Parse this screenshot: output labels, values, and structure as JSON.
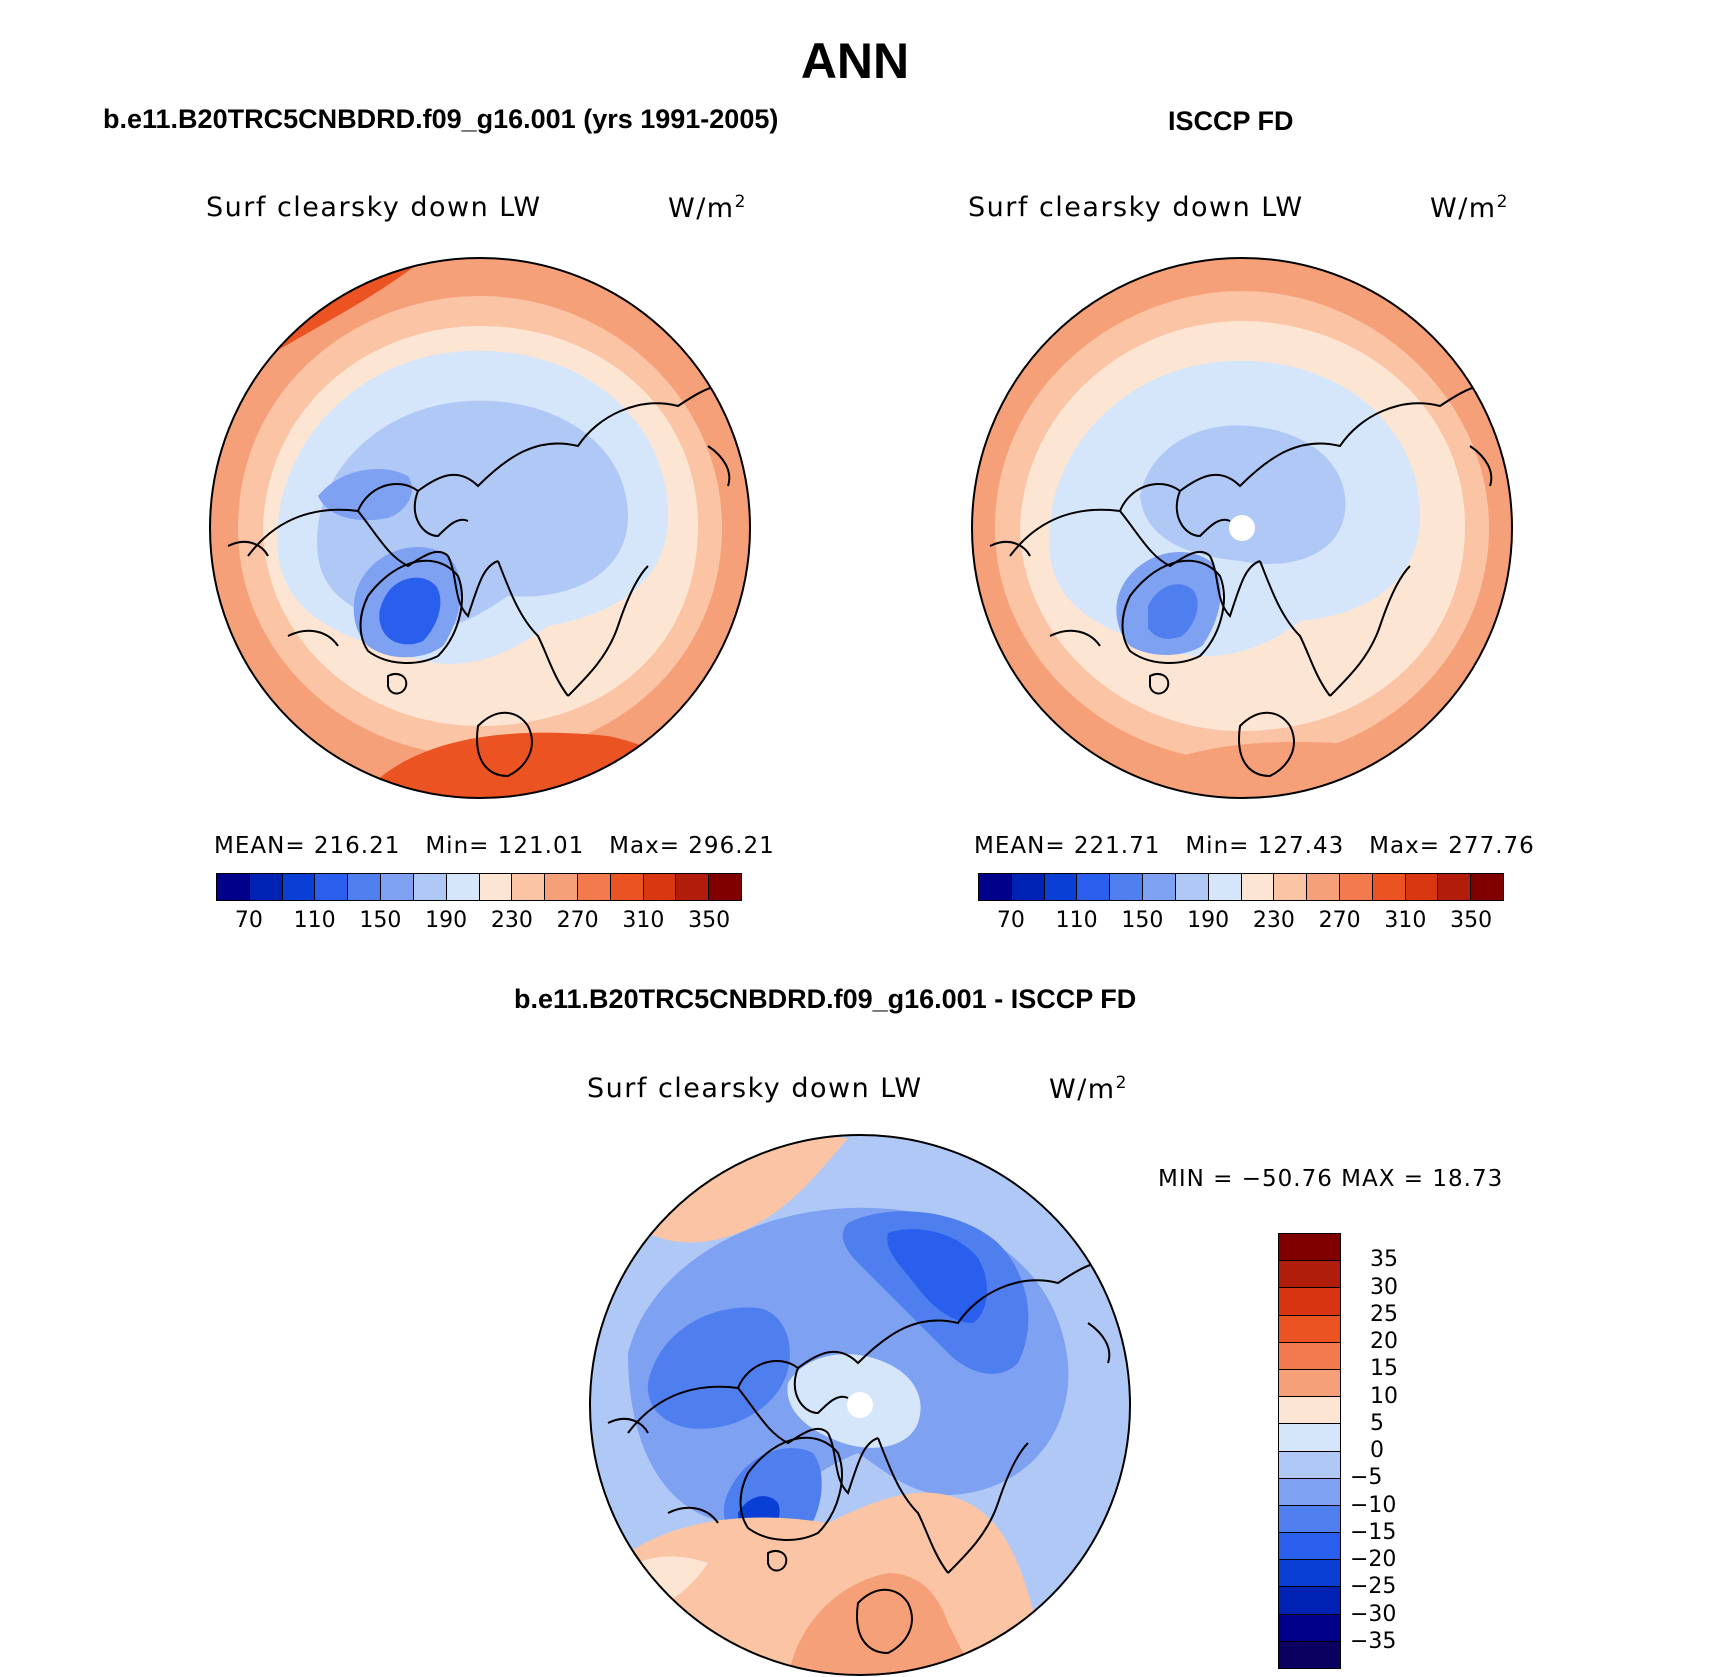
{
  "main_title": "ANN",
  "panels": [
    {
      "case_title": "b.e11.B20TRC5CNBDRD.f09_g16.001 (yrs 1991-2005)",
      "variable": "Surf clearsky down LW",
      "units": "W/m",
      "units_exp": "2",
      "mean_label": "MEAN=",
      "mean_value": "216.21",
      "min_label": "Min=",
      "min_value": "121.01",
      "max_label": "Max=",
      "max_value": "296.21"
    },
    {
      "case_title": "ISCCP FD",
      "variable": "Surf clearsky down LW",
      "units": "W/m",
      "units_exp": "2",
      "mean_label": "MEAN=",
      "mean_value": "221.71",
      "min_label": "Min=",
      "min_value": "127.43",
      "max_label": "Max=",
      "max_value": "277.76"
    }
  ],
  "diff_panel": {
    "case_title": "b.e11.B20TRC5CNBDRD.f09_g16.001 - ISCCP FD",
    "variable": "Surf clearsky down LW",
    "units": "W/m",
    "units_exp": "2",
    "minmax": "MIN = −50.76 MAX =  18.73"
  },
  "abs_colorbar": {
    "colors": [
      "#00008b",
      "#0022b4",
      "#0a3fd6",
      "#2a5fee",
      "#4f7fef",
      "#7ea1f2",
      "#b0c8f6",
      "#d6e6fa",
      "#fde5d4",
      "#fbc4a4",
      "#f6a07a",
      "#f27a4c",
      "#ec5322",
      "#d93612",
      "#b21c0a",
      "#800000"
    ],
    "tick_labels": [
      "70",
      "110",
      "150",
      "190",
      "230",
      "270",
      "310",
      "350"
    ],
    "tick_values": [
      70,
      110,
      150,
      190,
      230,
      270,
      310,
      350
    ],
    "levels": [
      50,
      60,
      70,
      80,
      90,
      100,
      110,
      120,
      130,
      140,
      150,
      160,
      170,
      180,
      190,
      200,
      210,
      220,
      230,
      240,
      250,
      260,
      270,
      280,
      290,
      300,
      310,
      320,
      330,
      340,
      350
    ]
  },
  "diff_colorbar": {
    "colors_top_to_bottom": [
      "#800000",
      "#b01d0a",
      "#d83411",
      "#ec5322",
      "#f27a4c",
      "#f6a07a",
      "#fde5d4",
      "#d6e6fa",
      "#b0c8f6",
      "#7ea1f2",
      "#4f7fef",
      "#2a5fee",
      "#0a3fd6",
      "#0022b4",
      "#00008b",
      "#0a0060"
    ],
    "tick_labels": [
      "35",
      "30",
      "25",
      "20",
      "15",
      "10",
      "5",
      "0",
      "−5",
      "−10",
      "−15",
      "−20",
      "−25",
      "−30",
      "−35"
    ]
  },
  "map_colors": {
    "warm_dark": "#ec5322",
    "warm_mid": "#f6a07a",
    "warm_light": "#fbc4a4",
    "warm_pale": "#fde5d4",
    "cool_pale": "#d6e6fa",
    "cool_light": "#b0c8f6",
    "cool_mid": "#7ea1f2",
    "cool_dark": "#4f7fef",
    "cool_deep": "#2a5fee",
    "cool_deepest": "#0a3fd6"
  }
}
